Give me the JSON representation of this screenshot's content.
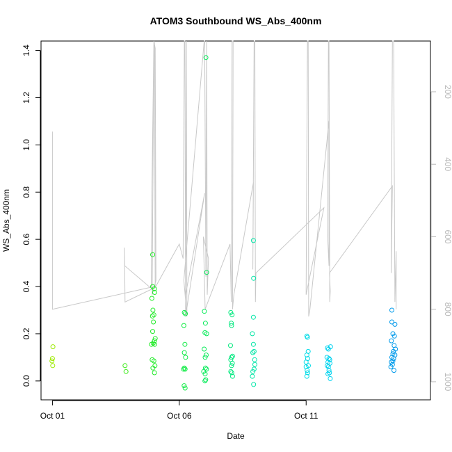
{
  "chart_data": {
    "type": "scatter",
    "title": "ATOM3 Southbound WS_Abs_400nm",
    "xlabel": "Date",
    "ylabel": "WS_Abs_400nm",
    "x_ticks": [
      "Oct 01",
      "Oct 06",
      "Oct 11"
    ],
    "x_tick_days": [
      1,
      6,
      11
    ],
    "xlim_days": [
      0.55,
      15.9
    ],
    "ylim": [
      -0.08,
      1.44
    ],
    "y_ticks": [
      "0.0",
      "0.2",
      "0.4",
      "0.6",
      "0.8",
      "1.0",
      "1.2",
      "1.4"
    ],
    "y_tick_values": [
      0,
      0.2,
      0.4,
      0.6,
      0.8,
      1.0,
      1.2,
      1.4
    ],
    "right_axis": {
      "ylim": [
        1050,
        60
      ],
      "ticks": [
        "200",
        "400",
        "600",
        "800",
        "1000"
      ],
      "tick_values": [
        200,
        400,
        600,
        800,
        1000
      ],
      "color": "#b8b8b8"
    },
    "points": [
      {
        "x": 1.02,
        "y": 0.145
      },
      {
        "x": 1.0,
        "y": 0.095
      },
      {
        "x": 0.98,
        "y": 0.085
      },
      {
        "x": 1.01,
        "y": 0.065
      },
      {
        "x": 3.86,
        "y": 0.065
      },
      {
        "x": 3.9,
        "y": 0.04
      },
      {
        "x": 4.95,
        "y": 0.535
      },
      {
        "x": 4.95,
        "y": 0.4
      },
      {
        "x": 5.02,
        "y": 0.39
      },
      {
        "x": 5.03,
        "y": 0.375
      },
      {
        "x": 4.92,
        "y": 0.35
      },
      {
        "x": 4.96,
        "y": 0.3
      },
      {
        "x": 5.0,
        "y": 0.28
      },
      {
        "x": 4.94,
        "y": 0.275
      },
      {
        "x": 4.98,
        "y": 0.25
      },
      {
        "x": 4.95,
        "y": 0.21
      },
      {
        "x": 5.05,
        "y": 0.18
      },
      {
        "x": 5.02,
        "y": 0.17
      },
      {
        "x": 4.9,
        "y": 0.155
      },
      {
        "x": 4.97,
        "y": 0.16
      },
      {
        "x": 5.03,
        "y": 0.155
      },
      {
        "x": 4.93,
        "y": 0.09
      },
      {
        "x": 5.0,
        "y": 0.085
      },
      {
        "x": 5.04,
        "y": 0.065
      },
      {
        "x": 4.96,
        "y": 0.055
      },
      {
        "x": 5.02,
        "y": 0.035
      },
      {
        "x": 6.2,
        "y": 0.29
      },
      {
        "x": 6.24,
        "y": 0.285
      },
      {
        "x": 6.18,
        "y": 0.235
      },
      {
        "x": 6.22,
        "y": 0.155
      },
      {
        "x": 6.2,
        "y": 0.12
      },
      {
        "x": 6.25,
        "y": 0.1
      },
      {
        "x": 6.2,
        "y": 0.055
      },
      {
        "x": 6.17,
        "y": 0.05
      },
      {
        "x": 6.23,
        "y": 0.05
      },
      {
        "x": 6.19,
        "y": -0.02
      },
      {
        "x": 6.23,
        "y": -0.03
      },
      {
        "x": 7.05,
        "y": 1.37
      },
      {
        "x": 7.08,
        "y": 0.46
      },
      {
        "x": 6.99,
        "y": 0.295
      },
      {
        "x": 7.03,
        "y": 0.245
      },
      {
        "x": 7.01,
        "y": 0.205
      },
      {
        "x": 7.08,
        "y": 0.2
      },
      {
        "x": 6.98,
        "y": 0.135
      },
      {
        "x": 7.06,
        "y": 0.11
      },
      {
        "x": 7.02,
        "y": 0.1
      },
      {
        "x": 7.03,
        "y": 0.055
      },
      {
        "x": 6.96,
        "y": 0.04
      },
      {
        "x": 7.07,
        "y": 0.05
      },
      {
        "x": 7.02,
        "y": 0.03
      },
      {
        "x": 7.04,
        "y": 0.005
      },
      {
        "x": 7.01,
        "y": 0.0
      },
      {
        "x": 8.03,
        "y": 0.29
      },
      {
        "x": 8.08,
        "y": 0.28
      },
      {
        "x": 8.05,
        "y": 0.245
      },
      {
        "x": 8.06,
        "y": 0.235
      },
      {
        "x": 8.02,
        "y": 0.15
      },
      {
        "x": 8.1,
        "y": 0.105
      },
      {
        "x": 8.06,
        "y": 0.1
      },
      {
        "x": 8.03,
        "y": 0.09
      },
      {
        "x": 8.09,
        "y": 0.075
      },
      {
        "x": 8.06,
        "y": 0.065
      },
      {
        "x": 8.03,
        "y": 0.04
      },
      {
        "x": 8.07,
        "y": 0.035
      },
      {
        "x": 8.1,
        "y": 0.02
      },
      {
        "x": 8.92,
        "y": 0.595
      },
      {
        "x": 8.93,
        "y": 0.435
      },
      {
        "x": 8.92,
        "y": 0.27
      },
      {
        "x": 8.88,
        "y": 0.2
      },
      {
        "x": 8.92,
        "y": 0.155
      },
      {
        "x": 8.95,
        "y": 0.125
      },
      {
        "x": 8.9,
        "y": 0.12
      },
      {
        "x": 8.97,
        "y": 0.09
      },
      {
        "x": 8.98,
        "y": 0.07
      },
      {
        "x": 8.95,
        "y": 0.05
      },
      {
        "x": 8.9,
        "y": 0.04
      },
      {
        "x": 8.88,
        "y": 0.02
      },
      {
        "x": 8.93,
        "y": -0.015
      },
      {
        "x": 11.03,
        "y": 0.19
      },
      {
        "x": 11.05,
        "y": 0.185
      },
      {
        "x": 11.08,
        "y": 0.125
      },
      {
        "x": 11.03,
        "y": 0.11
      },
      {
        "x": 11.06,
        "y": 0.095
      },
      {
        "x": 11.0,
        "y": 0.08
      },
      {
        "x": 11.09,
        "y": 0.065
      },
      {
        "x": 11.0,
        "y": 0.06
      },
      {
        "x": 11.04,
        "y": 0.045
      },
      {
        "x": 11.06,
        "y": 0.035
      },
      {
        "x": 11.03,
        "y": 0.02
      },
      {
        "x": 11.84,
        "y": 0.14
      },
      {
        "x": 11.96,
        "y": 0.145
      },
      {
        "x": 11.88,
        "y": 0.135
      },
      {
        "x": 11.82,
        "y": 0.1
      },
      {
        "x": 11.9,
        "y": 0.095
      },
      {
        "x": 11.93,
        "y": 0.09
      },
      {
        "x": 11.86,
        "y": 0.08
      },
      {
        "x": 11.94,
        "y": 0.075
      },
      {
        "x": 11.83,
        "y": 0.065
      },
      {
        "x": 11.88,
        "y": 0.06
      },
      {
        "x": 11.9,
        "y": 0.045
      },
      {
        "x": 11.92,
        "y": 0.035
      },
      {
        "x": 11.86,
        "y": 0.03
      },
      {
        "x": 11.95,
        "y": 0.01
      },
      {
        "x": 14.38,
        "y": 0.3
      },
      {
        "x": 14.38,
        "y": 0.25
      },
      {
        "x": 14.5,
        "y": 0.24
      },
      {
        "x": 14.42,
        "y": 0.2
      },
      {
        "x": 14.48,
        "y": 0.19
      },
      {
        "x": 14.36,
        "y": 0.17
      },
      {
        "x": 14.47,
        "y": 0.15
      },
      {
        "x": 14.52,
        "y": 0.135
      },
      {
        "x": 14.44,
        "y": 0.125
      },
      {
        "x": 14.42,
        "y": 0.115
      },
      {
        "x": 14.5,
        "y": 0.11
      },
      {
        "x": 14.38,
        "y": 0.1
      },
      {
        "x": 14.45,
        "y": 0.095
      },
      {
        "x": 14.42,
        "y": 0.085
      },
      {
        "x": 14.36,
        "y": 0.08
      },
      {
        "x": 14.4,
        "y": 0.07
      },
      {
        "x": 14.34,
        "y": 0.06
      },
      {
        "x": 14.46,
        "y": 0.045
      }
    ],
    "altitude_path": [
      [
        1.0,
        310
      ],
      [
        1.0,
        330
      ],
      [
        1.0,
        360
      ],
      [
        1.0,
        390
      ],
      [
        1.0,
        800
      ],
      [
        4.85,
        740
      ],
      [
        3.85,
        680
      ],
      [
        3.84,
        630
      ],
      [
        3.86,
        780
      ],
      [
        4.9,
        745
      ],
      [
        4.92,
        480
      ],
      [
        5.0,
        60
      ],
      [
        5.05,
        80
      ],
      [
        5.08,
        720
      ],
      [
        4.93,
        760
      ],
      [
        5.0,
        60
      ],
      [
        5.02,
        65
      ],
      [
        5.05,
        740
      ],
      [
        6.0,
        620
      ],
      [
        6.15,
        660
      ],
      [
        6.2,
        60
      ],
      [
        6.22,
        60
      ],
      [
        6.25,
        820
      ],
      [
        7.0,
        480
      ],
      [
        6.25,
        760
      ],
      [
        6.28,
        60
      ],
      [
        6.3,
        820
      ],
      [
        6.18,
        720
      ],
      [
        6.98,
        60
      ],
      [
        7.0,
        60
      ],
      [
        7.05,
        710
      ],
      [
        7.08,
        60
      ],
      [
        7.1,
        760
      ],
      [
        7.15,
        660
      ],
      [
        6.95,
        600
      ],
      [
        7.02,
        800
      ],
      [
        8.0,
        620
      ],
      [
        8.05,
        780
      ],
      [
        8.08,
        60
      ],
      [
        8.12,
        60
      ],
      [
        8.1,
        800
      ],
      [
        8.15,
        760
      ],
      [
        8.92,
        450
      ],
      [
        8.9,
        690
      ],
      [
        8.95,
        60
      ],
      [
        8.98,
        60
      ],
      [
        9.0,
        780
      ],
      [
        9.02,
        700
      ],
      [
        11.7,
        520
      ],
      [
        11.0,
        760
      ],
      [
        11.05,
        60
      ],
      [
        11.08,
        60
      ],
      [
        11.1,
        820
      ],
      [
        11.15,
        800
      ],
      [
        11.9,
        280
      ],
      [
        11.9,
        680
      ],
      [
        11.85,
        600
      ],
      [
        11.88,
        60
      ],
      [
        11.9,
        60
      ],
      [
        11.93,
        780
      ],
      [
        11.95,
        750
      ],
      [
        11.92,
        700
      ],
      [
        14.4,
        460
      ],
      [
        14.35,
        700
      ],
      [
        14.4,
        60
      ],
      [
        14.45,
        60
      ],
      [
        14.5,
        780
      ],
      [
        14.55,
        640
      ],
      [
        14.55,
        800
      ]
    ],
    "colors": {
      "axis": "#000000",
      "altitude_line": "#c8c8c8",
      "right_axis_text": "#b8b8b8"
    }
  }
}
